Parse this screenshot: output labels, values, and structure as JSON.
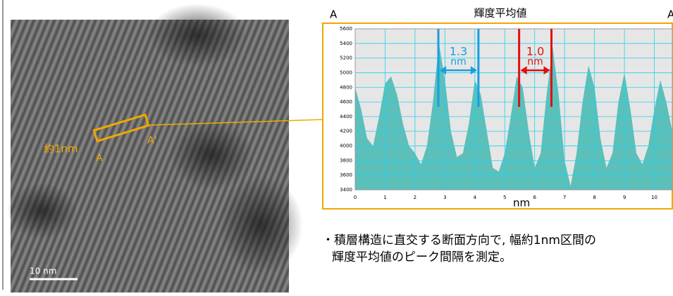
{
  "chart_data": {
    "type": "area",
    "title": "輝度平均値",
    "corner_labels": [
      "A",
      "A'"
    ],
    "xlabel": "nm",
    "x": [
      0,
      0.2,
      0.4,
      0.6,
      0.8,
      1.0,
      1.2,
      1.4,
      1.6,
      1.8,
      2.0,
      2.2,
      2.4,
      2.6,
      2.8,
      3.0,
      3.2,
      3.4,
      3.6,
      3.8,
      4.0,
      4.2,
      4.4,
      4.6,
      4.8,
      5.0,
      5.2,
      5.4,
      5.6,
      5.8,
      6.0,
      6.2,
      6.4,
      6.6,
      6.8,
      7.0,
      7.2,
      7.4,
      7.6,
      7.8,
      8.0,
      8.2,
      8.4,
      8.6,
      8.8,
      9.0,
      9.2,
      9.4,
      9.6,
      9.8,
      10.0,
      10.2,
      10.4,
      10.6
    ],
    "values": [
      4800,
      4500,
      4100,
      4000,
      4400,
      4850,
      4950,
      4700,
      4300,
      4000,
      3900,
      3750,
      4000,
      4600,
      5400,
      4900,
      4200,
      3850,
      3900,
      4300,
      4900,
      4700,
      4200,
      3700,
      3650,
      3900,
      4400,
      4950,
      4800,
      4200,
      3700,
      3900,
      4700,
      5350,
      4700,
      3800,
      3450,
      3900,
      4600,
      5100,
      4800,
      4100,
      3700,
      3900,
      4600,
      5000,
      4500,
      3900,
      3750,
      4000,
      4500,
      4900,
      4600,
      4200
    ],
    "color": "#5bbfba",
    "xlim": [
      0,
      10.6
    ],
    "ylim": [
      3400,
      5600
    ],
    "xticks": [
      0,
      1,
      2,
      3,
      4,
      5,
      6,
      7,
      8,
      9,
      10
    ],
    "yticks": [
      3400,
      3600,
      3800,
      4000,
      4200,
      4400,
      4600,
      4800,
      5000,
      5200,
      5400,
      5600
    ],
    "grid": true,
    "annotations": [
      {
        "label": "1.3",
        "unit": "nm",
        "x": [
          2.78,
          4.12
        ],
        "color": "#1a9ee0"
      },
      {
        "label": "1.0",
        "unit": "nm",
        "x": [
          5.48,
          6.56
        ],
        "color": "#e01010"
      }
    ]
  },
  "image": {
    "scale_label": "10 nm",
    "width_label": "約1nm",
    "start_label": "A",
    "end_label": "A'"
  },
  "note": [
    "・積層構造に直交する断面方向で, 幅約1nm区間の",
    "輝度平均値のピーク間隔を測定。"
  ]
}
